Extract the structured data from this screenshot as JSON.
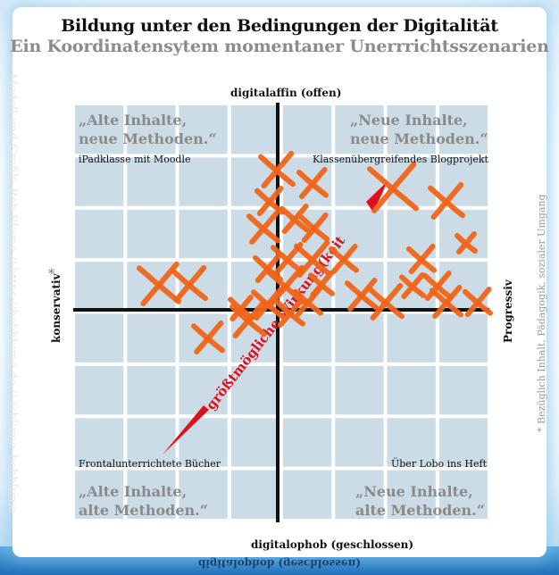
{
  "header": {
    "title": "Bildung unter den Bedingungen der Digitalität",
    "subtitle": "Ein Koordinatensytem momentaner Unerrrichtsszenarien"
  },
  "axes": {
    "top": "digitalaffin (offen)",
    "bottom": "digitalophob (geschlossen)",
    "left": "konservativ",
    "right": "Progressiv"
  },
  "quadrants": {
    "top_left": {
      "quote_line1": "„Alte Inhalte,",
      "quote_line2": "neue Methoden.“",
      "example": "iPadklasse mit Moodle"
    },
    "top_right": {
      "quote_line1": "„Neue Inhalte,",
      "quote_line2": "neue Methoden.“",
      "example": "Klassenübergreifendes Blogprojekt"
    },
    "bottom_left": {
      "quote_line1": "„Alte Inhalte,",
      "quote_line2": "alte Methoden.“",
      "example": "Frontalunterrichtete Bücher"
    },
    "bottom_right": {
      "quote_line1": "„Neue Inhalte,",
      "quote_line2": "alte Methoden.“",
      "example": "Über Lobo ins Heft"
    }
  },
  "arrow_label": "größtmögliche Wirkung(keit",
  "side_note": "* Bezüglich Inhalt, Pädagogik, sozialer Umgang",
  "watermark": "Modell und Grafik: Bob Blume // https://bobblume.de // @blume_bobblume",
  "mirror_text": "digitalophob (geschlossen)",
  "colors": {
    "grid_cell": "#ccdce6",
    "axis": "#111111",
    "arrow": "#e0101a",
    "marks": "#f06418"
  }
}
